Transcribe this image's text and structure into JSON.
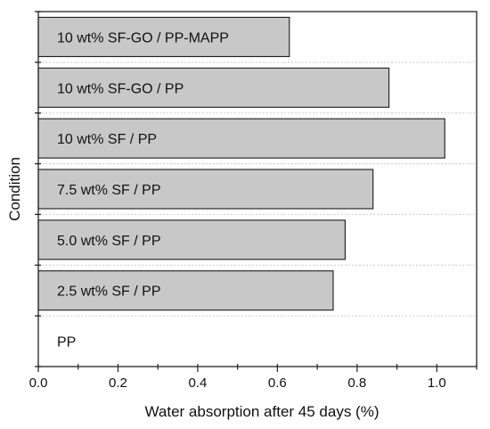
{
  "chart_data": {
    "type": "bar",
    "orientation": "horizontal",
    "categories": [
      "10 wt% SF-GO / PP-MAPP",
      "10 wt% SF-GO / PP",
      "10 wt% SF / PP",
      "7.5 wt% SF / PP",
      "5.0 wt% SF / PP",
      "2.5 wt% SF / PP",
      "PP"
    ],
    "values": [
      0.63,
      0.88,
      1.02,
      0.84,
      0.77,
      0.74,
      0.0
    ],
    "xlabel": "Water absorption after 45 days (%)",
    "ylabel": "Condition",
    "xlim": [
      0.0,
      1.1
    ],
    "xticks": [
      "0.0",
      "0.2",
      "0.4",
      "0.6",
      "0.8",
      "1.0"
    ],
    "grid": "horizontal dotted",
    "bar_color": "#c8c8c8",
    "bar_edge_color": "#1a1a1a"
  }
}
